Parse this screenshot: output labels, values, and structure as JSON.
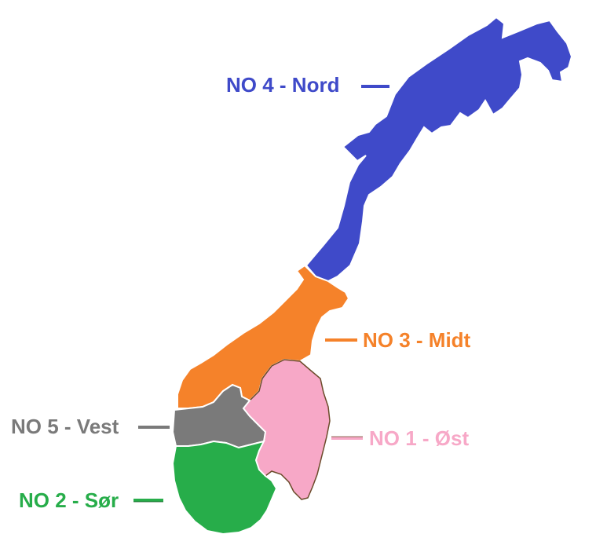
{
  "map": {
    "zones": [
      {
        "id": "NO4",
        "label": "NO 4 - Nord",
        "color": "#3f4ac9"
      },
      {
        "id": "NO3",
        "label": "NO 3 - Midt",
        "color": "#f5822a"
      },
      {
        "id": "NO5",
        "label": "NO 5 - Vest",
        "color": "#7a7a7a"
      },
      {
        "id": "NO1",
        "label": "NO 1 - Øst",
        "color": "#f7a8c7"
      },
      {
        "id": "NO2",
        "label": "NO 2 - Sør",
        "color": "#27ad4a"
      }
    ]
  }
}
